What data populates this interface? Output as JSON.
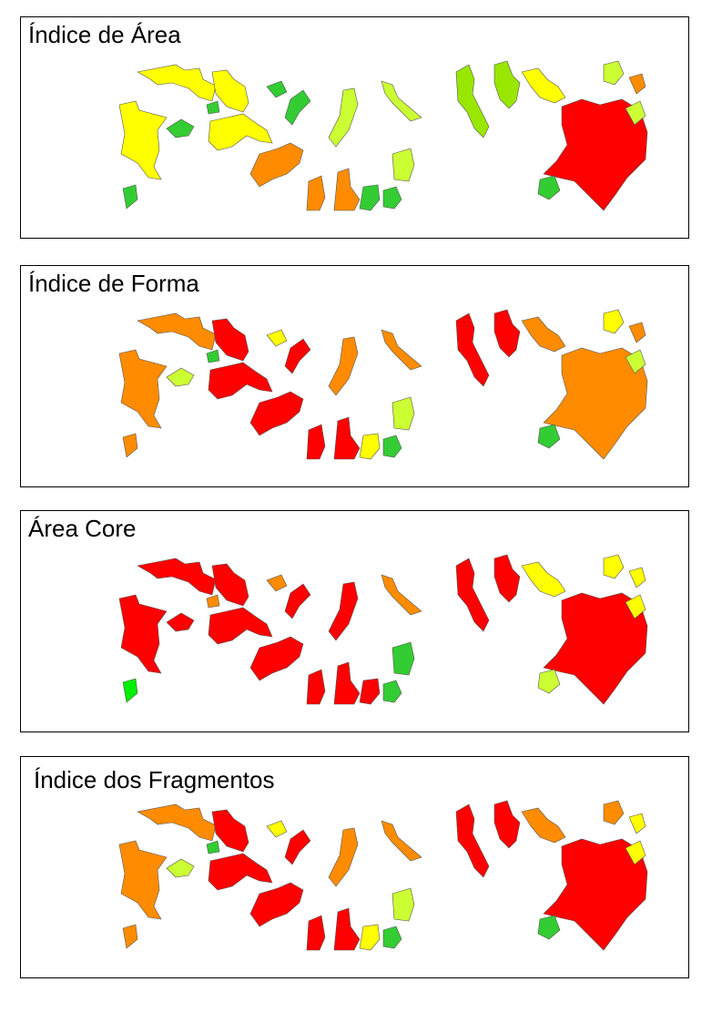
{
  "colors": {
    "red": "#ff0000",
    "orange": "#ff8c00",
    "yellow": "#ffff00",
    "light_green": "#ccff33",
    "yellow_green": "#99e600",
    "green": "#33cc33",
    "bright_green": "#00ee00",
    "outline": "#555555"
  },
  "legend_scale": [
    "green",
    "yellow_green",
    "yellow",
    "orange",
    "red"
  ],
  "panels": [
    {
      "title": "Índice de Área",
      "palette": [
        "yellow",
        "yellow",
        "yellow",
        "yellow",
        "green",
        "green",
        "green",
        "green",
        "light_green",
        "light_green",
        "light_green",
        "orange",
        "orange",
        "orange",
        "green",
        "green",
        "yellow_green",
        "yellow_green",
        "yellow",
        "light_green",
        "orange",
        "red",
        "green",
        "light_green",
        "green"
      ]
    },
    {
      "title": "Índice de Forma",
      "palette": [
        "orange",
        "orange",
        "red",
        "red",
        "green",
        "light_green",
        "yellow",
        "red",
        "orange",
        "orange",
        "light_green",
        "red",
        "red",
        "red",
        "yellow",
        "green",
        "red",
        "red",
        "orange",
        "yellow",
        "orange",
        "orange",
        "green",
        "light_green",
        "orange"
      ]
    },
    {
      "title": "Área Core",
      "palette": [
        "red",
        "red",
        "red",
        "red",
        "orange",
        "red",
        "orange",
        "red",
        "red",
        "orange",
        "green",
        "red",
        "red",
        "red",
        "red",
        "green",
        "red",
        "red",
        "yellow",
        "yellow",
        "yellow",
        "red",
        "light_green",
        "yellow",
        "bright_green"
      ]
    },
    {
      "title": "Índice dos Fragmentos",
      "palette": [
        "orange",
        "orange",
        "red",
        "red",
        "green",
        "light_green",
        "yellow",
        "red",
        "orange",
        "orange",
        "light_green",
        "red",
        "red",
        "red",
        "yellow",
        "green",
        "red",
        "red",
        "orange",
        "orange",
        "yellow",
        "red",
        "green",
        "yellow",
        "orange"
      ]
    }
  ]
}
